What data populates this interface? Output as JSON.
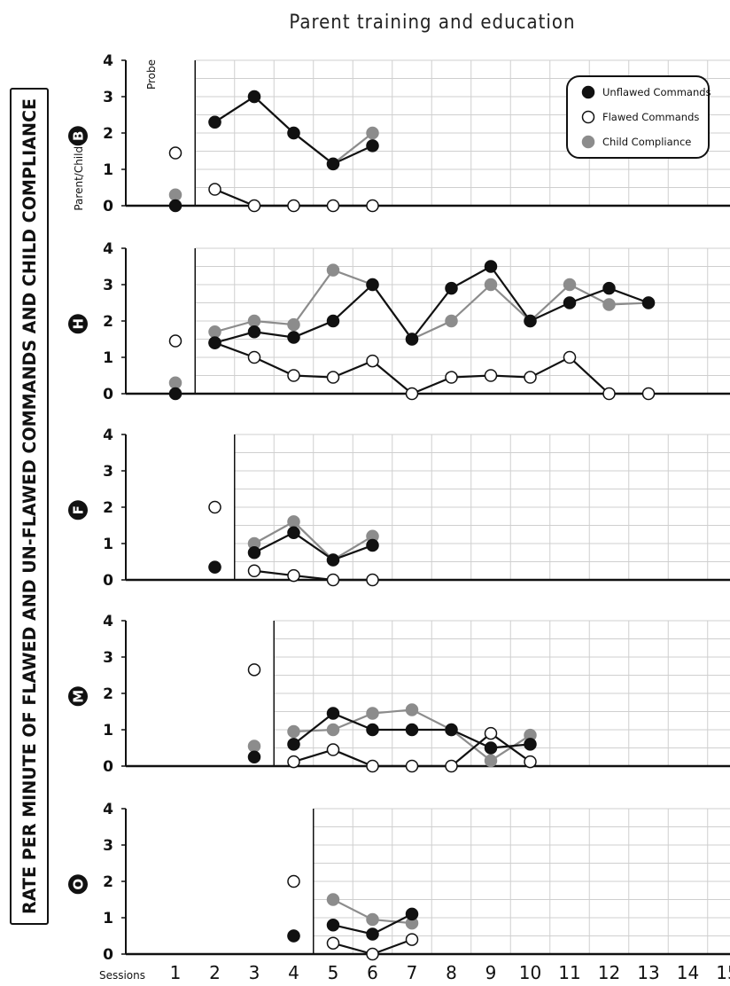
{
  "chart_data": {
    "type": "line",
    "title": "Parent training and education",
    "ylabel": "RATE PER MINUTE OF FLAWED AND UN-FLAWED COMMANDS AND CHILD COMPLIANCE",
    "xlabel": "Sessions",
    "x_ticks": [
      1,
      2,
      3,
      4,
      5,
      6,
      7,
      8,
      9,
      10,
      11,
      12,
      13,
      14,
      15
    ],
    "ylim": [
      0,
      4
    ],
    "y_ticks": [
      0,
      1,
      2,
      3,
      4
    ],
    "grid": true,
    "legend": {
      "position": "top-right of first panel",
      "entries": [
        {
          "name": "Unflawed Commands",
          "color": "#111111"
        },
        {
          "name": "Flawed Commands",
          "color": "#ffffff"
        },
        {
          "name": "Child Compliance",
          "color": "#8c8c8c"
        }
      ]
    },
    "annotations": {
      "probe_label": "Probe",
      "first_panel_prefix": "Parent/Child"
    },
    "panels": [
      {
        "label": "B",
        "baseline_end_session": 1,
        "series": [
          {
            "name": "Unflawed Commands",
            "probe": [
              [
                1,
                0
              ]
            ],
            "values": [
              [
                2,
                2.3
              ],
              [
                3,
                3.0
              ],
              [
                4,
                2.0
              ],
              [
                5,
                1.15
              ],
              [
                6,
                1.65
              ]
            ]
          },
          {
            "name": "Flawed Commands",
            "probe": [
              [
                1,
                1.45
              ]
            ],
            "values": [
              [
                2,
                0.45
              ],
              [
                3,
                0
              ],
              [
                4,
                0
              ],
              [
                5,
                0
              ],
              [
                6,
                0
              ]
            ]
          },
          {
            "name": "Child Compliance",
            "probe": [
              [
                1,
                0.3
              ]
            ],
            "values": [
              [
                2,
                2.3
              ],
              [
                3,
                3.0
              ],
              [
                4,
                2.0
              ],
              [
                5,
                1.15
              ],
              [
                6,
                2.0
              ]
            ]
          }
        ]
      },
      {
        "label": "H",
        "baseline_end_session": 1,
        "series": [
          {
            "name": "Unflawed Commands",
            "probe": [
              [
                1,
                0
              ]
            ],
            "values": [
              [
                2,
                1.4
              ],
              [
                3,
                1.7
              ],
              [
                4,
                1.55
              ],
              [
                5,
                2.0
              ],
              [
                6,
                3.0
              ],
              [
                7,
                1.5
              ],
              [
                8,
                2.9
              ],
              [
                9,
                3.5
              ],
              [
                10,
                2.0
              ],
              [
                11,
                2.5
              ],
              [
                12,
                2.9
              ],
              [
                13,
                2.5
              ]
            ]
          },
          {
            "name": "Flawed Commands",
            "probe": [
              [
                1,
                1.45
              ]
            ],
            "values": [
              [
                2,
                1.4
              ],
              [
                3,
                1.0
              ],
              [
                4,
                0.5
              ],
              [
                5,
                0.45
              ],
              [
                6,
                0.9
              ],
              [
                7,
                0
              ],
              [
                8,
                0.45
              ],
              [
                9,
                0.5
              ],
              [
                10,
                0.45
              ],
              [
                11,
                1.0
              ],
              [
                12,
                0
              ],
              [
                13,
                0
              ]
            ]
          },
          {
            "name": "Child Compliance",
            "probe": [
              [
                1,
                0.3
              ]
            ],
            "values": [
              [
                2,
                1.7
              ],
              [
                3,
                2.0
              ],
              [
                4,
                1.9
              ],
              [
                5,
                3.4
              ],
              [
                6,
                3.0
              ],
              [
                7,
                1.5
              ],
              [
                8,
                2.0
              ],
              [
                9,
                3.0
              ],
              [
                10,
                2.0
              ],
              [
                11,
                3.0
              ],
              [
                12,
                2.45
              ],
              [
                13,
                2.5
              ]
            ]
          }
        ]
      },
      {
        "label": "F",
        "baseline_end_session": 2,
        "series": [
          {
            "name": "Unflawed Commands",
            "probe": [
              [
                2,
                0.35
              ]
            ],
            "values": [
              [
                3,
                0.75
              ],
              [
                4,
                1.3
              ],
              [
                5,
                0.55
              ],
              [
                6,
                0.95
              ]
            ]
          },
          {
            "name": "Flawed Commands",
            "probe": [
              [
                2,
                2.0
              ]
            ],
            "values": [
              [
                3,
                0.25
              ],
              [
                4,
                0.12
              ],
              [
                5,
                0
              ],
              [
                6,
                0
              ]
            ]
          },
          {
            "name": "Child Compliance",
            "probe": [
              [
                2,
                0.35
              ]
            ],
            "values": [
              [
                3,
                1.0
              ],
              [
                4,
                1.6
              ],
              [
                5,
                0.55
              ],
              [
                6,
                1.2
              ]
            ]
          }
        ]
      },
      {
        "label": "M",
        "baseline_end_session": 3,
        "series": [
          {
            "name": "Unflawed Commands",
            "probe": [
              [
                3,
                0.25
              ]
            ],
            "values": [
              [
                4,
                0.6
              ],
              [
                5,
                1.45
              ],
              [
                6,
                1.0
              ],
              [
                7,
                1.0
              ],
              [
                8,
                1.0
              ],
              [
                9,
                0.5
              ],
              [
                10,
                0.6
              ]
            ]
          },
          {
            "name": "Flawed Commands",
            "probe": [
              [
                3,
                2.65
              ]
            ],
            "values": [
              [
                4,
                0.12
              ],
              [
                5,
                0.45
              ],
              [
                6,
                0
              ],
              [
                7,
                0
              ],
              [
                8,
                0
              ],
              [
                9,
                0.9
              ],
              [
                10,
                0.12
              ]
            ]
          },
          {
            "name": "Child Compliance",
            "probe": [
              [
                3,
                0.55
              ]
            ],
            "values": [
              [
                4,
                0.95
              ],
              [
                5,
                1.0
              ],
              [
                6,
                1.45
              ],
              [
                7,
                1.55
              ],
              [
                8,
                1.0
              ],
              [
                9,
                0.15
              ],
              [
                10,
                0.85
              ]
            ]
          }
        ]
      },
      {
        "label": "O",
        "baseline_end_session": 4,
        "series": [
          {
            "name": "Unflawed Commands",
            "probe": [
              [
                4,
                0.5
              ]
            ],
            "values": [
              [
                5,
                0.8
              ],
              [
                6,
                0.55
              ],
              [
                7,
                1.1
              ]
            ]
          },
          {
            "name": "Flawed Commands",
            "probe": [
              [
                4,
                2.0
              ]
            ],
            "values": [
              [
                5,
                0.3
              ],
              [
                6,
                0
              ],
              [
                7,
                0.4
              ]
            ]
          },
          {
            "name": "Child Compliance",
            "probe": [
              [
                4,
                0.5
              ]
            ],
            "values": [
              [
                5,
                1.5
              ],
              [
                6,
                0.95
              ],
              [
                7,
                0.85
              ]
            ]
          }
        ]
      }
    ]
  }
}
